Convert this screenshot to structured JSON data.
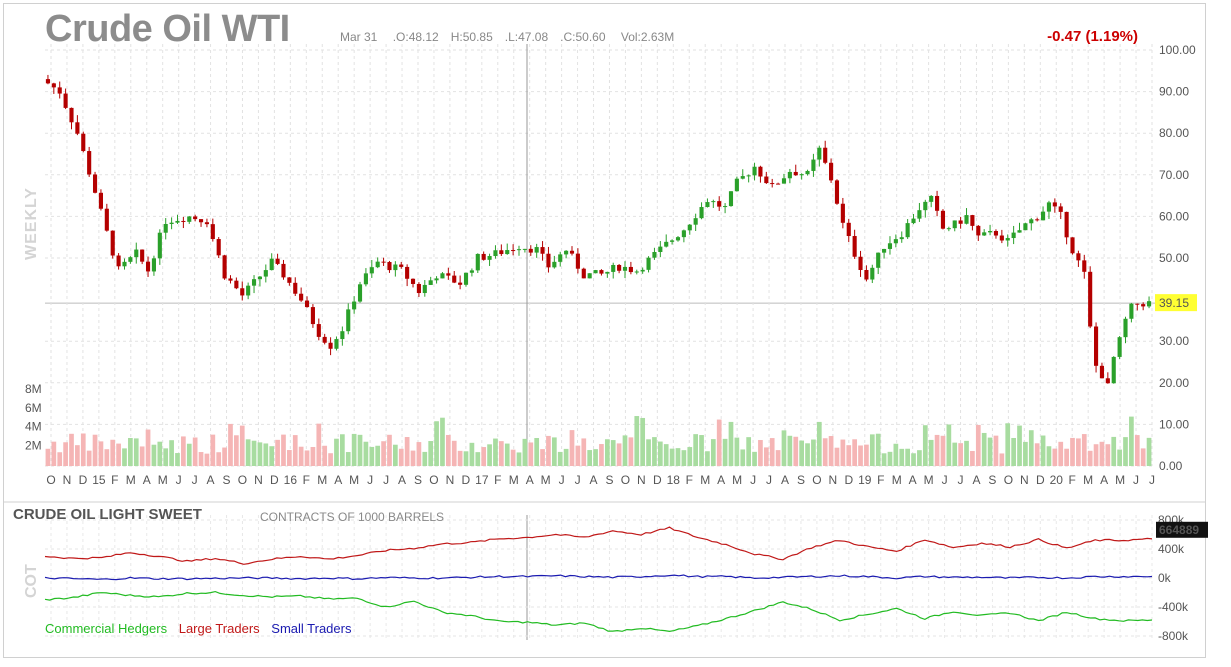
{
  "header": {
    "title": "Crude Oil WTI",
    "date": "Mar 31",
    "open": ".O:48.12",
    "high": "H:50.85",
    "low": ".L:47.08",
    "close": ".C:50.60",
    "volume": "Vol:2.63M",
    "change": "-0.47 (1.19%)",
    "period_label": "WEEKLY"
  },
  "colors": {
    "up": "#2aa02a",
    "down": "#b40000",
    "vol_up": "#a8dca0",
    "vol_down": "#f5b5b5",
    "last_tag": "#ffff33",
    "large": "#c01818",
    "small": "#1a1ab0",
    "commercial": "#22bb22"
  },
  "chart_data": [
    {
      "type": "candlestick",
      "title": "Crude Oil WTI",
      "price_axis": {
        "ylim": [
          0,
          100
        ],
        "ticks": [
          "100.00",
          "90.00",
          "80.00",
          "70.00",
          "60.00",
          "50.00",
          "39.15",
          "30.00",
          "20.00",
          "10.00",
          "0.00"
        ]
      },
      "volume_axis": {
        "ticks": [
          "8M",
          "6M",
          "4M",
          "2M"
        ]
      },
      "x_ticks": [
        "O",
        "N",
        "D",
        "15",
        "F",
        "M",
        "A",
        "M",
        "J",
        "J",
        "A",
        "S",
        "O",
        "N",
        "D",
        "16",
        "F",
        "M",
        "A",
        "M",
        "J",
        "J",
        "A",
        "S",
        "O",
        "N",
        "D",
        "17",
        "F",
        "M",
        "A",
        "M",
        "J",
        "J",
        "A",
        "S",
        "O",
        "N",
        "D",
        "18",
        "F",
        "M",
        "A",
        "M",
        "J",
        "J",
        "A",
        "S",
        "O",
        "N",
        "D",
        "19",
        "F",
        "M",
        "A",
        "M",
        "J",
        "J",
        "A",
        "S",
        "O",
        "N",
        "D",
        "20",
        "F",
        "M",
        "A",
        "M",
        "J",
        "J"
      ],
      "last_value": "39.15",
      "close_path": [
        [
          0,
          92
        ],
        [
          2,
          90
        ],
        [
          5,
          80
        ],
        [
          8,
          66
        ],
        [
          10,
          56
        ],
        [
          12,
          47
        ],
        [
          15,
          51
        ],
        [
          17,
          47
        ],
        [
          20,
          59
        ],
        [
          24,
          60
        ],
        [
          27,
          59
        ],
        [
          30,
          46
        ],
        [
          33,
          41
        ],
        [
          35,
          44
        ],
        [
          38,
          49
        ],
        [
          40,
          46
        ],
        [
          43,
          40
        ],
        [
          46,
          32
        ],
        [
          48,
          29
        ],
        [
          50,
          33
        ],
        [
          53,
          44
        ],
        [
          56,
          49
        ],
        [
          60,
          47
        ],
        [
          63,
          42
        ],
        [
          66,
          46
        ],
        [
          70,
          44
        ],
        [
          73,
          50
        ],
        [
          76,
          51
        ],
        [
          80,
          53
        ],
        [
          83,
          52
        ],
        [
          85,
          48
        ],
        [
          88,
          52
        ],
        [
          91,
          46
        ],
        [
          94,
          46
        ],
        [
          97,
          48
        ],
        [
          100,
          47
        ],
        [
          104,
          52
        ],
        [
          108,
          57
        ],
        [
          112,
          64
        ],
        [
          115,
          62
        ],
        [
          117,
          68
        ],
        [
          120,
          72
        ],
        [
          123,
          67
        ],
        [
          126,
          71
        ],
        [
          129,
          70
        ],
        [
          131,
          76
        ],
        [
          133,
          69
        ],
        [
          135,
          58
        ],
        [
          137,
          51
        ],
        [
          139,
          45
        ],
        [
          142,
          53
        ],
        [
          145,
          56
        ],
        [
          148,
          62
        ],
        [
          150,
          64
        ],
        [
          152,
          57
        ],
        [
          154,
          58
        ],
        [
          156,
          60
        ],
        [
          158,
          55
        ],
        [
          161,
          56
        ],
        [
          163,
          54
        ],
        [
          166,
          58
        ],
        [
          168,
          60
        ],
        [
          170,
          63
        ],
        [
          172,
          60
        ],
        [
          174,
          52
        ],
        [
          176,
          46
        ],
        [
          177,
          33
        ],
        [
          178,
          24
        ],
        [
          179,
          22
        ],
        [
          180,
          19
        ],
        [
          181,
          26
        ],
        [
          182,
          30
        ],
        [
          183,
          35
        ],
        [
          184,
          38
        ],
        [
          185,
          39
        ],
        [
          186,
          39.15
        ]
      ],
      "volume_bars": 188,
      "volume_scale_max": 8
    },
    {
      "type": "line",
      "title": "CRUDE OIL LIGHT SWEET",
      "subtitle": "CONTRACTS OF 1000 BARRELS",
      "y_ticks": [
        "800k",
        "400k",
        "0k",
        "-400k",
        "-800k"
      ],
      "last_value": "664889",
      "series": [
        {
          "name": "Commercial Hedgers",
          "values": [
            -300,
            -270,
            -200,
            -240,
            -260,
            -210,
            -200,
            -240,
            -260,
            -250,
            -290,
            -280,
            -400,
            -320,
            -470,
            -520,
            -600,
            -610,
            -650,
            -620,
            -740,
            -690,
            -740,
            -660,
            -560,
            -450,
            -330,
            -430,
            -580,
            -500,
            -420,
            -560,
            -460,
            -520,
            -480,
            -590,
            -470,
            -560,
            -590,
            -580
          ]
        },
        {
          "name": "Large Traders",
          "values": [
            300,
            270,
            280,
            350,
            300,
            230,
            270,
            200,
            260,
            300,
            260,
            310,
            380,
            410,
            470,
            490,
            540,
            560,
            600,
            560,
            650,
            600,
            690,
            560,
            460,
            330,
            260,
            420,
            520,
            430,
            370,
            530,
            420,
            480,
            430,
            530,
            410,
            520,
            520,
            540
          ]
        },
        {
          "name": "Small Traders",
          "values": [
            0,
            -10,
            -20,
            0,
            -10,
            -10,
            -5,
            0,
            0,
            -10,
            0,
            -10,
            5,
            0,
            0,
            10,
            20,
            20,
            30,
            20,
            10,
            20,
            40,
            20,
            20,
            0,
            10,
            20,
            30,
            20,
            0,
            20,
            10,
            10,
            0,
            10,
            0,
            20,
            20,
            20
          ]
        }
      ]
    }
  ],
  "legend": {
    "commercial": "Commercial Hedgers",
    "large": "Large Traders",
    "small": "Small Traders"
  },
  "cot_label": "COT"
}
